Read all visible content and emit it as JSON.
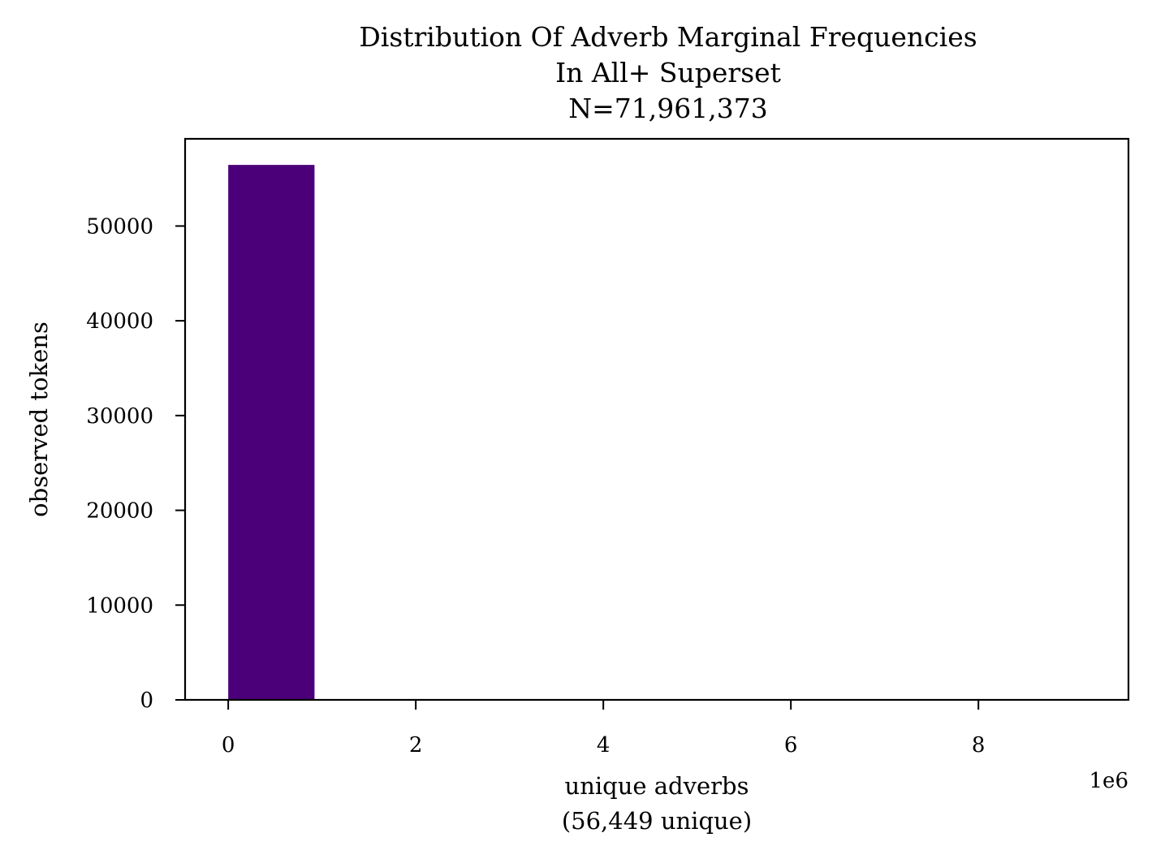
{
  "chart_data": {
    "type": "bar",
    "title": [
      "Distribution Of Adverb Marginal Frequencies",
      "In All+ Superset",
      "N=71,961,373"
    ],
    "xlabel": [
      "unique adverbs",
      "(56,449 unique)"
    ],
    "ylabel": "observed tokens",
    "x_offset_label": "1e6",
    "xlim": [
      -0.23,
      4.8
    ],
    "ylim": [
      0,
      59200
    ],
    "xticks": [
      0,
      1,
      2,
      3,
      4
    ],
    "xtick_labels": [
      "0",
      "2",
      "4",
      "6",
      "8"
    ],
    "yticks": [
      0,
      10000,
      20000,
      30000,
      40000,
      50000
    ],
    "ytick_labels": [
      "0",
      "10000",
      "20000",
      "30000",
      "40000",
      "50000"
    ],
    "bins": [
      {
        "x0": 0.0,
        "x1": 0.46,
        "count": 56449
      },
      {
        "x0": 0.46,
        "x1": 0.92,
        "count": 0
      },
      {
        "x0": 0.92,
        "x1": 1.38,
        "count": 0
      },
      {
        "x0": 1.38,
        "x1": 1.84,
        "count": 0
      },
      {
        "x0": 1.84,
        "x1": 2.3,
        "count": 0
      },
      {
        "x0": 2.3,
        "x1": 2.76,
        "count": 0
      },
      {
        "x0": 2.76,
        "x1": 3.22,
        "count": 0
      },
      {
        "x0": 3.22,
        "x1": 3.68,
        "count": 0
      },
      {
        "x0": 3.68,
        "x1": 4.14,
        "count": 0
      },
      {
        "x0": 4.14,
        "x1": 4.6,
        "count": 0
      }
    ],
    "bar_color": "#4b0079",
    "grid": false,
    "legend": "none"
  }
}
